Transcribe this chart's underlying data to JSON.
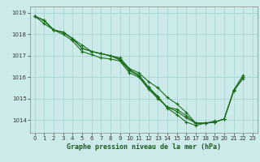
{
  "title": "Graphe pression niveau de la mer (hPa)",
  "bg_color": "#cceaea",
  "grid_color": "#aad4d4",
  "line_color": "#1a6e1a",
  "xlim": [
    -0.5,
    23.5
  ],
  "ylim": [
    1013.4,
    1019.3
  ],
  "yticks": [
    1014,
    1015,
    1016,
    1017,
    1018,
    1019
  ],
  "xticks": [
    0,
    1,
    2,
    3,
    4,
    5,
    6,
    7,
    8,
    9,
    10,
    11,
    12,
    13,
    14,
    15,
    16,
    17,
    18,
    19,
    20,
    21,
    22,
    23
  ],
  "series": [
    [
      1018.85,
      1018.65,
      1018.2,
      1018.1,
      1017.8,
      1017.5,
      1017.2,
      1017.1,
      1017.0,
      1016.9,
      1016.4,
      1016.2,
      1015.8,
      1015.5,
      1015.05,
      1014.75,
      1014.35,
      1013.85,
      1013.85,
      1013.9,
      1014.05,
      1015.35,
      1015.95,
      null
    ],
    [
      1018.85,
      1018.65,
      1018.2,
      1018.1,
      1017.8,
      1017.35,
      1017.2,
      1017.1,
      1017.0,
      1016.85,
      1016.35,
      1016.1,
      1015.55,
      1015.1,
      1014.55,
      1014.25,
      1013.9,
      1013.75,
      1013.85,
      1013.9,
      1014.05,
      1015.35,
      1016.0,
      null
    ],
    [
      1018.85,
      1018.65,
      1018.2,
      1018.1,
      1017.8,
      1017.35,
      1017.2,
      1017.1,
      1017.0,
      1016.8,
      1016.3,
      1016.05,
      1015.5,
      1015.05,
      1014.6,
      1014.5,
      1014.2,
      1013.85,
      1013.85,
      1013.95,
      null,
      null,
      null,
      null
    ],
    [
      1018.85,
      1018.5,
      1018.2,
      1018.0,
      1017.7,
      1017.2,
      1017.05,
      1016.9,
      1016.85,
      1016.75,
      1016.2,
      1016.0,
      1015.45,
      1015.0,
      1014.6,
      1014.4,
      1014.1,
      1013.85,
      1013.85,
      1013.9,
      1014.05,
      1015.4,
      1016.1,
      null
    ]
  ]
}
